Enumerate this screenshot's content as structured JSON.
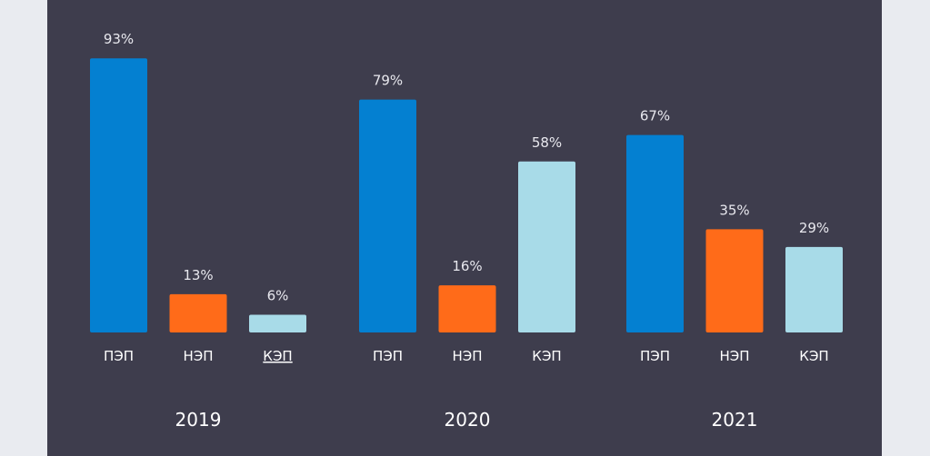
{
  "chart_data": {
    "type": "bar",
    "groups": [
      {
        "label": "2019",
        "bars": [
          {
            "category": "ПЭП",
            "value": 93,
            "label": "93%",
            "underlined": false
          },
          {
            "category": "НЭП",
            "value": 13,
            "label": "13%",
            "underlined": false
          },
          {
            "category": "КЭП",
            "value": 6,
            "label": "6%",
            "underlined": true
          }
        ]
      },
      {
        "label": "2020",
        "bars": [
          {
            "category": "ПЭП",
            "value": 79,
            "label": "79%",
            "underlined": false
          },
          {
            "category": "НЭП",
            "value": 16,
            "label": "16%",
            "underlined": false
          },
          {
            "category": "КЭП",
            "value": 58,
            "label": "58%",
            "underlined": false
          }
        ]
      },
      {
        "label": "2021",
        "bars": [
          {
            "category": "ПЭП",
            "value": 67,
            "label": "67%",
            "underlined": false
          },
          {
            "category": "НЭП",
            "value": 35,
            "label": "35%",
            "underlined": false
          },
          {
            "category": "КЭП",
            "value": 29,
            "label": "29%",
            "underlined": false
          }
        ]
      }
    ],
    "ylim": [
      0,
      100
    ],
    "grid": false,
    "colors": {
      "ПЭП": "#0480d1",
      "НЭП": "#ff6b19",
      "КЭП": "#a8dbe8"
    }
  },
  "colors": {
    "background": "#e9ebf0",
    "panel": "#3e3d4d"
  }
}
